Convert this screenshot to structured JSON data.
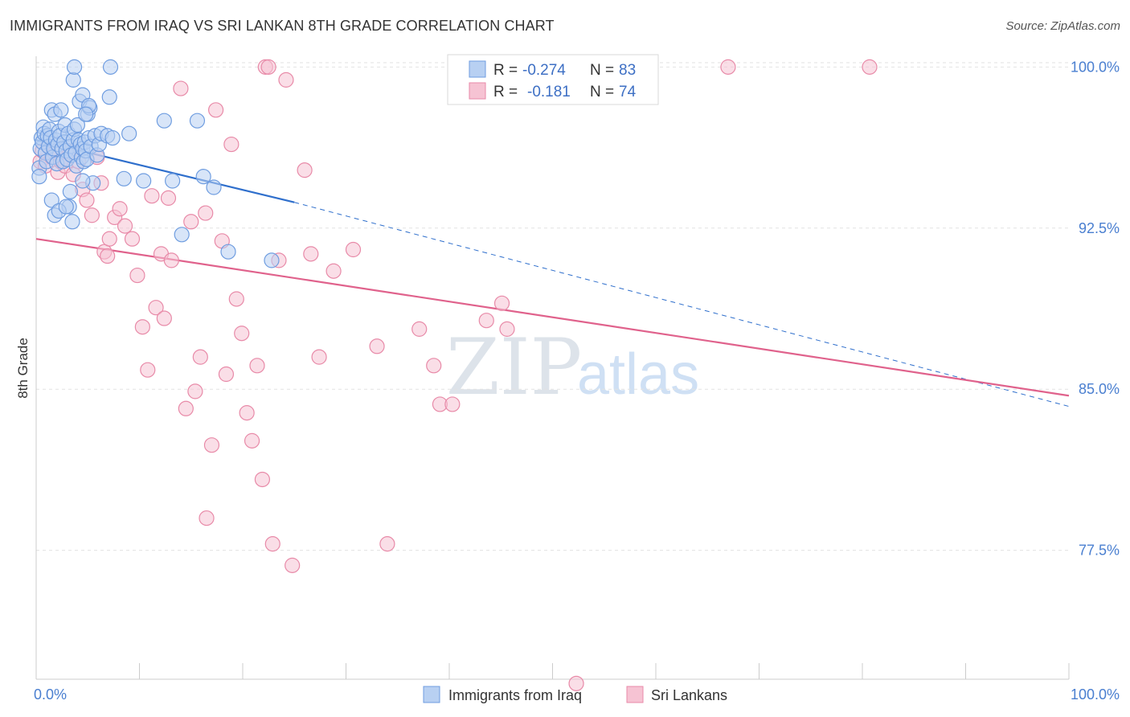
{
  "title": "IMMIGRANTS FROM IRAQ VS SRI LANKAN 8TH GRADE CORRELATION CHART",
  "source": "Source: ZipAtlas.com",
  "watermark": {
    "zip": "ZIP",
    "atlas": "atlas"
  },
  "chart_data": {
    "type": "scatter",
    "ylabel": "8th Grade",
    "xlabel": "",
    "xlim": [
      0,
      100
    ],
    "ylim": [
      71.5,
      100.5
    ],
    "x_tick_labels": [
      {
        "value": 0,
        "label": "0.0%"
      },
      {
        "value": 100,
        "label": "100.0%"
      }
    ],
    "y_tick_labels": [
      {
        "value": 100.0,
        "label": "100.0%"
      },
      {
        "value": 92.5,
        "label": "92.5%"
      },
      {
        "value": 85.0,
        "label": "85.0%"
      },
      {
        "value": 77.5,
        "label": "77.5%"
      }
    ],
    "grid": "horizontal dashed",
    "legend_position": "top-center",
    "series": [
      {
        "name": "Immigrants from Iraq",
        "color": "#6f9de0",
        "fill": "#b8d0f2",
        "stats": {
          "r_label": "R =",
          "r": "-0.274",
          "n_label": "N =",
          "n": "83"
        },
        "trend": {
          "x0": 0,
          "y0": 96.6,
          "x1": 25,
          "y1": 93.7,
          "dashed_to_x": 100,
          "dashed_to_y": 84.2,
          "color": "#2f6fcc"
        },
        "points": [
          [
            0.3,
            95.3
          ],
          [
            0.3,
            94.9
          ],
          [
            0.4,
            96.2
          ],
          [
            0.5,
            96.7
          ],
          [
            0.6,
            96.5
          ],
          [
            0.7,
            97.2
          ],
          [
            0.8,
            96.9
          ],
          [
            0.9,
            96.0
          ],
          [
            1.0,
            95.6
          ],
          [
            1.1,
            96.8
          ],
          [
            1.2,
            96.3
          ],
          [
            1.3,
            97.1
          ],
          [
            1.4,
            96.7
          ],
          [
            1.5,
            98.0
          ],
          [
            1.6,
            95.8
          ],
          [
            1.7,
            96.2
          ],
          [
            1.8,
            97.8
          ],
          [
            1.9,
            96.6
          ],
          [
            2.0,
            95.5
          ],
          [
            2.1,
            96.4
          ],
          [
            2.2,
            97.0
          ],
          [
            2.3,
            96.8
          ],
          [
            2.4,
            98.0
          ],
          [
            2.5,
            96.2
          ],
          [
            2.6,
            95.6
          ],
          [
            2.7,
            96.5
          ],
          [
            2.8,
            97.3
          ],
          [
            2.9,
            96.1
          ],
          [
            3.0,
            95.7
          ],
          [
            3.1,
            96.9
          ],
          [
            3.2,
            93.5
          ],
          [
            3.3,
            96.3
          ],
          [
            3.4,
            95.9
          ],
          [
            3.5,
            92.8
          ],
          [
            3.6,
            96.6
          ],
          [
            3.7,
            97.1
          ],
          [
            3.8,
            96.0
          ],
          [
            3.9,
            95.4
          ],
          [
            4.0,
            97.3
          ],
          [
            4.1,
            96.6
          ],
          [
            4.2,
            98.4
          ],
          [
            4.3,
            96.4
          ],
          [
            4.4,
            95.8
          ],
          [
            4.5,
            96.2
          ],
          [
            4.6,
            95.6
          ],
          [
            4.7,
            96.5
          ],
          [
            4.8,
            96.1
          ],
          [
            4.9,
            95.7
          ],
          [
            5.0,
            97.8
          ],
          [
            5.1,
            96.7
          ],
          [
            5.2,
            98.1
          ],
          [
            5.3,
            96.3
          ],
          [
            5.5,
            94.6
          ],
          [
            5.7,
            96.8
          ],
          [
            5.9,
            95.9
          ],
          [
            6.1,
            96.4
          ],
          [
            6.3,
            96.9
          ],
          [
            1.5,
            93.8
          ],
          [
            1.8,
            93.1
          ],
          [
            2.2,
            93.3
          ],
          [
            2.9,
            93.5
          ],
          [
            3.3,
            94.2
          ],
          [
            4.5,
            94.7
          ],
          [
            3.6,
            99.4
          ],
          [
            3.7,
            100.0
          ],
          [
            4.5,
            98.7
          ],
          [
            5.1,
            98.2
          ],
          [
            7.1,
            98.6
          ],
          [
            7.2,
            100.0
          ],
          [
            4.8,
            97.8
          ],
          [
            6.9,
            96.8
          ],
          [
            7.4,
            96.7
          ],
          [
            9.0,
            96.9
          ],
          [
            12.4,
            97.5
          ],
          [
            15.6,
            97.5
          ],
          [
            16.2,
            94.9
          ],
          [
            17.2,
            94.4
          ],
          [
            8.5,
            94.8
          ],
          [
            13.2,
            94.7
          ],
          [
            10.4,
            94.7
          ],
          [
            14.1,
            92.2
          ],
          [
            18.6,
            91.4
          ],
          [
            22.8,
            91.0
          ]
        ]
      },
      {
        "name": "Sri Lankans",
        "color": "#e88aa8",
        "fill": "#f6c3d3",
        "stats": {
          "r_label": "R =",
          "r": "-0.181",
          "n_label": "N =",
          "n": "74"
        },
        "trend": {
          "x0": 0,
          "y0": 92.0,
          "x1": 100,
          "y1": 84.7,
          "color": "#e0628c"
        },
        "points": [
          [
            0.4,
            95.6
          ],
          [
            0.6,
            96.1
          ],
          [
            0.9,
            95.4
          ],
          [
            1.2,
            96.3
          ],
          [
            1.5,
            95.8
          ],
          [
            1.8,
            96.0
          ],
          [
            2.1,
            95.1
          ],
          [
            2.4,
            95.6
          ],
          [
            2.8,
            95.4
          ],
          [
            3.3,
            96.1
          ],
          [
            3.6,
            95.0
          ],
          [
            4.1,
            95.6
          ],
          [
            4.5,
            94.3
          ],
          [
            4.9,
            93.8
          ],
          [
            5.4,
            93.1
          ],
          [
            5.9,
            95.8
          ],
          [
            6.3,
            94.6
          ],
          [
            6.6,
            91.4
          ],
          [
            6.9,
            91.2
          ],
          [
            7.1,
            92.0
          ],
          [
            7.6,
            93.0
          ],
          [
            8.1,
            93.4
          ],
          [
            8.6,
            92.6
          ],
          [
            9.3,
            92.0
          ],
          [
            9.8,
            90.3
          ],
          [
            10.3,
            87.9
          ],
          [
            10.8,
            85.9
          ],
          [
            11.2,
            94.0
          ],
          [
            11.6,
            88.8
          ],
          [
            12.1,
            91.3
          ],
          [
            12.4,
            88.3
          ],
          [
            12.8,
            93.9
          ],
          [
            13.1,
            91.0
          ],
          [
            14.0,
            99.0
          ],
          [
            14.5,
            84.1
          ],
          [
            15.0,
            92.8
          ],
          [
            15.4,
            84.9
          ],
          [
            15.9,
            86.5
          ],
          [
            16.4,
            93.2
          ],
          [
            17.0,
            82.4
          ],
          [
            17.4,
            98.0
          ],
          [
            18.0,
            91.9
          ],
          [
            18.4,
            85.7
          ],
          [
            18.9,
            96.4
          ],
          [
            19.4,
            89.2
          ],
          [
            19.9,
            87.6
          ],
          [
            20.4,
            83.9
          ],
          [
            20.9,
            82.6
          ],
          [
            21.4,
            86.1
          ],
          [
            21.9,
            80.8
          ],
          [
            22.2,
            100.0
          ],
          [
            22.5,
            100.0
          ],
          [
            22.9,
            77.8
          ],
          [
            23.5,
            91.0
          ],
          [
            24.2,
            99.4
          ],
          [
            24.8,
            76.8
          ],
          [
            26.0,
            95.2
          ],
          [
            26.6,
            91.3
          ],
          [
            27.4,
            86.5
          ],
          [
            28.8,
            90.5
          ],
          [
            30.7,
            91.5
          ],
          [
            33.0,
            87.0
          ],
          [
            34.0,
            77.8
          ],
          [
            37.1,
            87.8
          ],
          [
            38.5,
            86.1
          ],
          [
            39.1,
            84.3
          ],
          [
            40.3,
            84.3
          ],
          [
            43.6,
            88.2
          ],
          [
            45.1,
            89.0
          ],
          [
            45.6,
            87.8
          ],
          [
            67.0,
            100.0
          ],
          [
            80.7,
            100.0
          ],
          [
            16.5,
            79.0
          ],
          [
            52.3,
            71.3
          ]
        ]
      }
    ]
  }
}
